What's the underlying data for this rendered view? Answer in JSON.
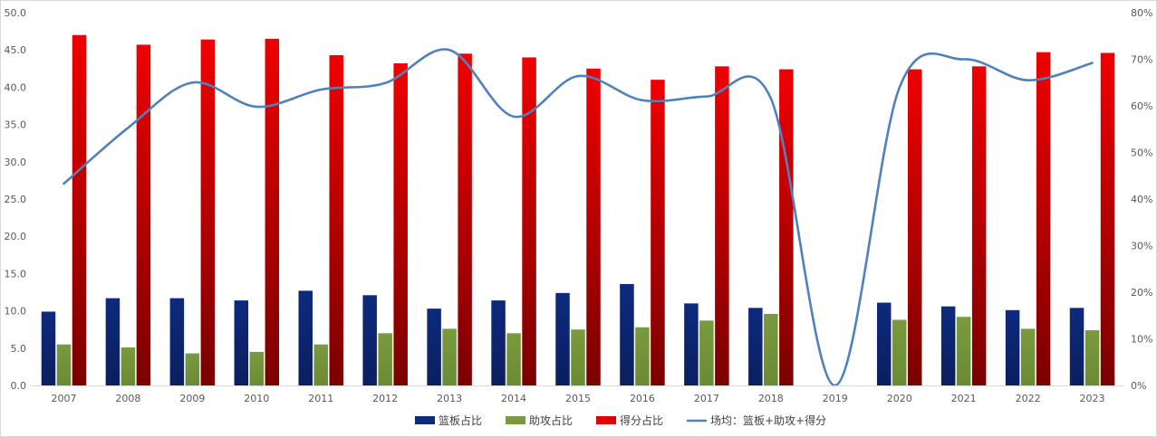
{
  "chart_data": {
    "type": "bar",
    "categories": [
      "2007",
      "2008",
      "2009",
      "2010",
      "2011",
      "2012",
      "2013",
      "2014",
      "2015",
      "2016",
      "2017",
      "2018",
      "2019",
      "2020",
      "2021",
      "2022",
      "2023"
    ],
    "series": [
      {
        "name": "篮板占比",
        "type": "bar",
        "axis": "left",
        "color": "#0D2A7E",
        "values": [
          9.9,
          11.7,
          11.7,
          11.4,
          12.7,
          12.1,
          10.3,
          11.4,
          12.4,
          13.6,
          11.0,
          10.4,
          0,
          11.1,
          10.6,
          10.1,
          10.4
        ]
      },
      {
        "name": "助攻占比",
        "type": "bar",
        "axis": "left",
        "color": "#7A9A3E",
        "values": [
          5.5,
          5.1,
          4.3,
          4.5,
          5.5,
          7.0,
          7.6,
          7.0,
          7.5,
          7.8,
          8.7,
          9.6,
          0,
          8.8,
          9.2,
          7.6,
          7.4
        ]
      },
      {
        "name": "得分占比",
        "type": "bar",
        "axis": "left",
        "color": "#E00000",
        "values": [
          47.0,
          45.7,
          46.4,
          46.5,
          44.3,
          43.2,
          44.5,
          44.0,
          42.5,
          41.0,
          42.8,
          42.4,
          0,
          42.4,
          42.8,
          44.7,
          44.6
        ]
      },
      {
        "name": "场均：篮板+助攻+得分",
        "type": "line",
        "axis": "right",
        "color": "#4F81BD",
        "values": [
          43.3,
          55.3,
          65.0,
          59.8,
          63.5,
          64.9,
          72.0,
          57.7,
          66.4,
          61.2,
          62.0,
          61.6,
          0,
          63.9,
          70.0,
          65.5,
          69.2
        ]
      }
    ],
    "y_left": {
      "min": 0,
      "max": 50,
      "step": 5,
      "ticks": [
        "0.0",
        "5.0",
        "10.0",
        "15.0",
        "20.0",
        "25.0",
        "30.0",
        "35.0",
        "40.0",
        "45.0",
        "50.0"
      ]
    },
    "y_right": {
      "min": 0,
      "max": 80,
      "step": 10,
      "ticks": [
        "0%",
        "10%",
        "20%",
        "30%",
        "40%",
        "50%",
        "60%",
        "70%",
        "80%"
      ]
    },
    "grid": false,
    "legend_position": "bottom"
  }
}
